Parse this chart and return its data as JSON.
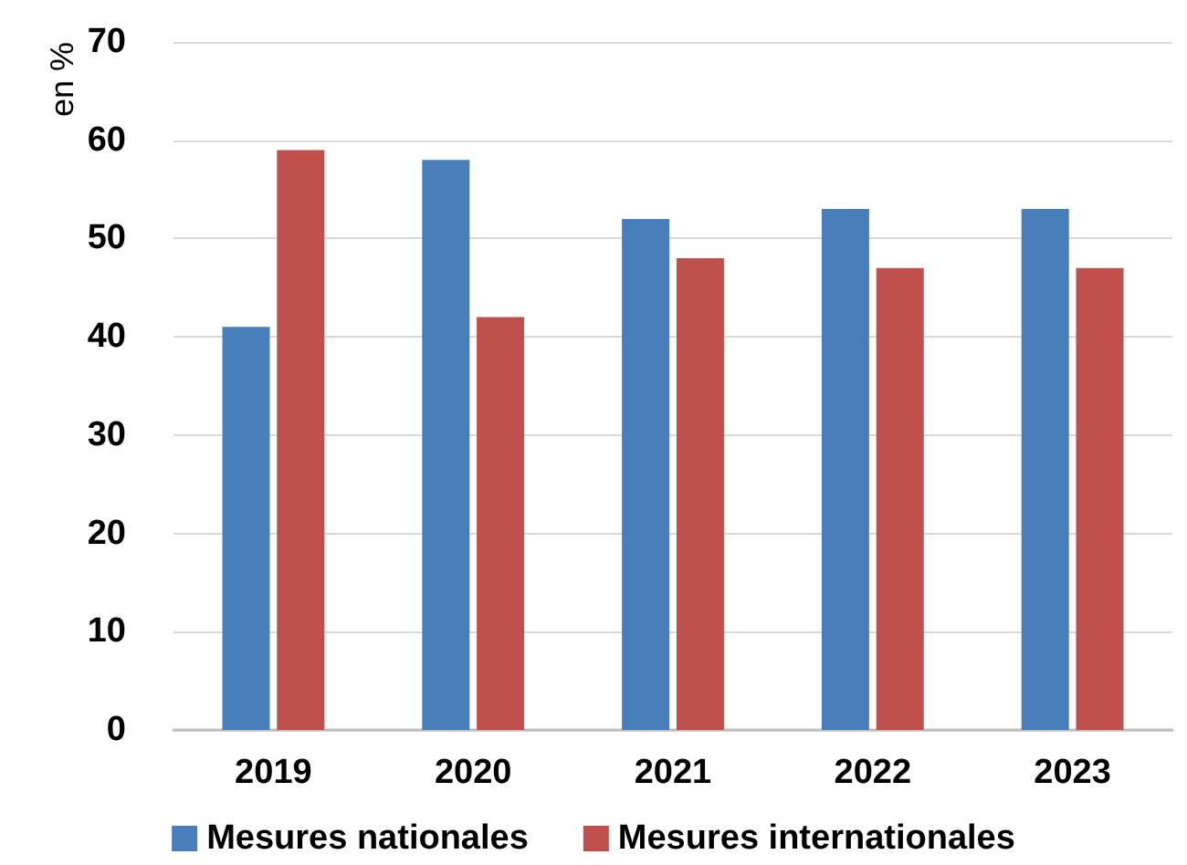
{
  "chart_data": {
    "type": "bar",
    "ylabel": "en %",
    "categories": [
      "2019",
      "2020",
      "2021",
      "2022",
      "2023"
    ],
    "series": [
      {
        "name": "Mesures nationales",
        "color": "#4a7ebb",
        "values": [
          41,
          58,
          52,
          53,
          53
        ]
      },
      {
        "name": "Mesures internationales",
        "color": "#c0504d",
        "values": [
          59,
          42,
          48,
          47,
          47
        ]
      }
    ],
    "ylim": [
      0,
      70
    ],
    "yticks": [
      0,
      10,
      20,
      30,
      40,
      50,
      60,
      70
    ],
    "grid": "y",
    "legend": "bottom"
  }
}
